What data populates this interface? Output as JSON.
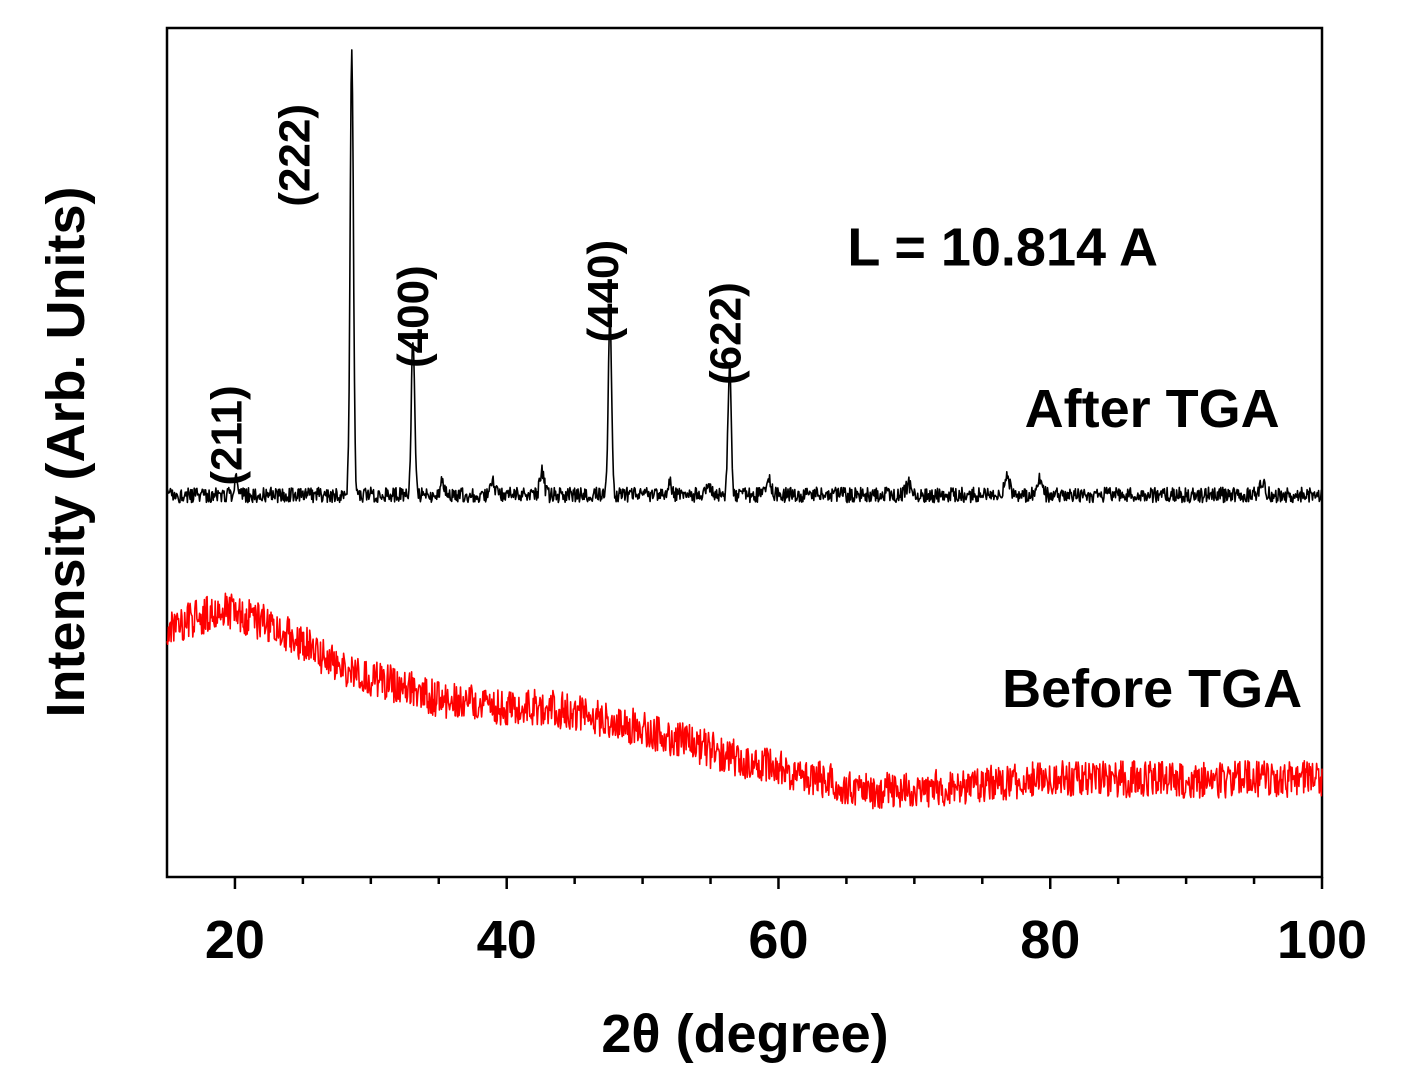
{
  "chart_data": {
    "type": "line",
    "title": "",
    "xlabel": "2θ (degree)",
    "ylabel": "Intensity (Arb. Units)",
    "xlim": [
      15,
      100
    ],
    "ylim": [
      0,
      100
    ],
    "x_ticks": [
      20,
      40,
      60,
      80,
      100
    ],
    "x_tick_labels": [
      "20",
      "40",
      "60",
      "80",
      "100"
    ],
    "y_ticks_shown": false,
    "grid": false,
    "annotation": "L = 10.814 A",
    "series": [
      {
        "name": "After TGA",
        "color": "#000000",
        "baseline": 45,
        "noise": 0.9,
        "peaks": [
          {
            "x": 20.1,
            "height": 2.6,
            "width": 0.12
          },
          {
            "x": 28.6,
            "height": 52.5,
            "width": 0.12
          },
          {
            "x": 33.1,
            "height": 18.2,
            "width": 0.12
          },
          {
            "x": 35.3,
            "height": 1.6,
            "width": 0.15
          },
          {
            "x": 39.0,
            "height": 1.4,
            "width": 0.15
          },
          {
            "x": 42.6,
            "height": 2.8,
            "width": 0.15
          },
          {
            "x": 47.6,
            "height": 22.0,
            "width": 0.12
          },
          {
            "x": 52.0,
            "height": 1.4,
            "width": 0.15
          },
          {
            "x": 54.9,
            "height": 1.2,
            "width": 0.15
          },
          {
            "x": 56.4,
            "height": 15.4,
            "width": 0.12
          },
          {
            "x": 59.3,
            "height": 2.2,
            "width": 0.15
          },
          {
            "x": 69.6,
            "height": 1.2,
            "width": 0.2
          },
          {
            "x": 76.8,
            "height": 2.4,
            "width": 0.2
          },
          {
            "x": 79.2,
            "height": 2.0,
            "width": 0.2
          },
          {
            "x": 95.6,
            "height": 1.6,
            "width": 0.2
          }
        ]
      },
      {
        "name": "Before TGA",
        "color": "#ff0000",
        "noise": 2.2,
        "profile": [
          [
            15,
            29.5
          ],
          [
            19,
            31.5
          ],
          [
            23,
            29.5
          ],
          [
            28,
            24.5
          ],
          [
            35,
            21.0
          ],
          [
            40,
            20.0
          ],
          [
            43,
            20.0
          ],
          [
            50,
            17.5
          ],
          [
            58,
            13.5
          ],
          [
            63,
            11.5
          ],
          [
            67,
            10.0
          ],
          [
            72,
            10.5
          ],
          [
            80,
            11.5
          ],
          [
            90,
            11.5
          ],
          [
            100,
            11.5
          ]
        ]
      }
    ],
    "peak_labels": [
      {
        "label": "(211)",
        "x": 20.5,
        "y": 52
      },
      {
        "label": "(222)",
        "x": 25.5,
        "y": 85
      },
      {
        "label": "(400)",
        "x": 34.2,
        "y": 66
      },
      {
        "label": "(440)",
        "x": 48.2,
        "y": 69
      },
      {
        "label": "(622)",
        "x": 57.2,
        "y": 64
      }
    ],
    "series_labels": [
      {
        "label": "After TGA",
        "x": 87.5,
        "y": 53
      },
      {
        "label": "Before TGA",
        "x": 87.5,
        "y": 20
      }
    ],
    "annotation_pos": {
      "x": 76.5,
      "y": 72
    }
  }
}
